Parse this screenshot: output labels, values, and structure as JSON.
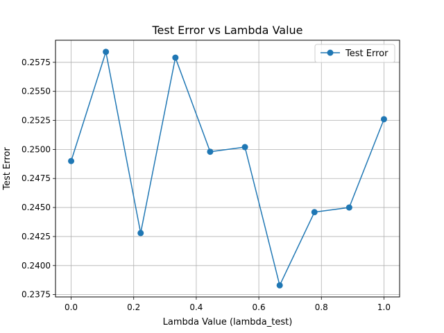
{
  "chart_data": {
    "type": "line",
    "title": "Test Error vs Lambda Value",
    "xlabel": "Lambda Value (lambda_test)",
    "ylabel": "Test Error",
    "xlim": [
      -0.05,
      1.05
    ],
    "ylim": [
      0.2373,
      0.2594
    ],
    "xticks": [
      0.0,
      0.2,
      0.4,
      0.6,
      0.8,
      1.0
    ],
    "xtick_labels": [
      "0.0",
      "0.2",
      "0.4",
      "0.6",
      "0.8",
      "1.0"
    ],
    "yticks": [
      0.2375,
      0.24,
      0.2425,
      0.245,
      0.2475,
      0.25,
      0.2525,
      0.255,
      0.2575
    ],
    "ytick_labels": [
      "0.2375",
      "0.2400",
      "0.2425",
      "0.2450",
      "0.2475",
      "0.2500",
      "0.2525",
      "0.2550",
      "0.2575"
    ],
    "grid": true,
    "legend_position": "top-right",
    "series": [
      {
        "name": "Test Error",
        "color": "#1f77b4",
        "marker": "circle",
        "x": [
          0.0,
          0.1111,
          0.2222,
          0.3333,
          0.4444,
          0.5556,
          0.6667,
          0.7778,
          0.8889,
          1.0
        ],
        "y": [
          0.249,
          0.2584,
          0.2428,
          0.2579,
          0.2498,
          0.2502,
          0.2383,
          0.2446,
          0.245,
          0.2526
        ]
      }
    ]
  }
}
